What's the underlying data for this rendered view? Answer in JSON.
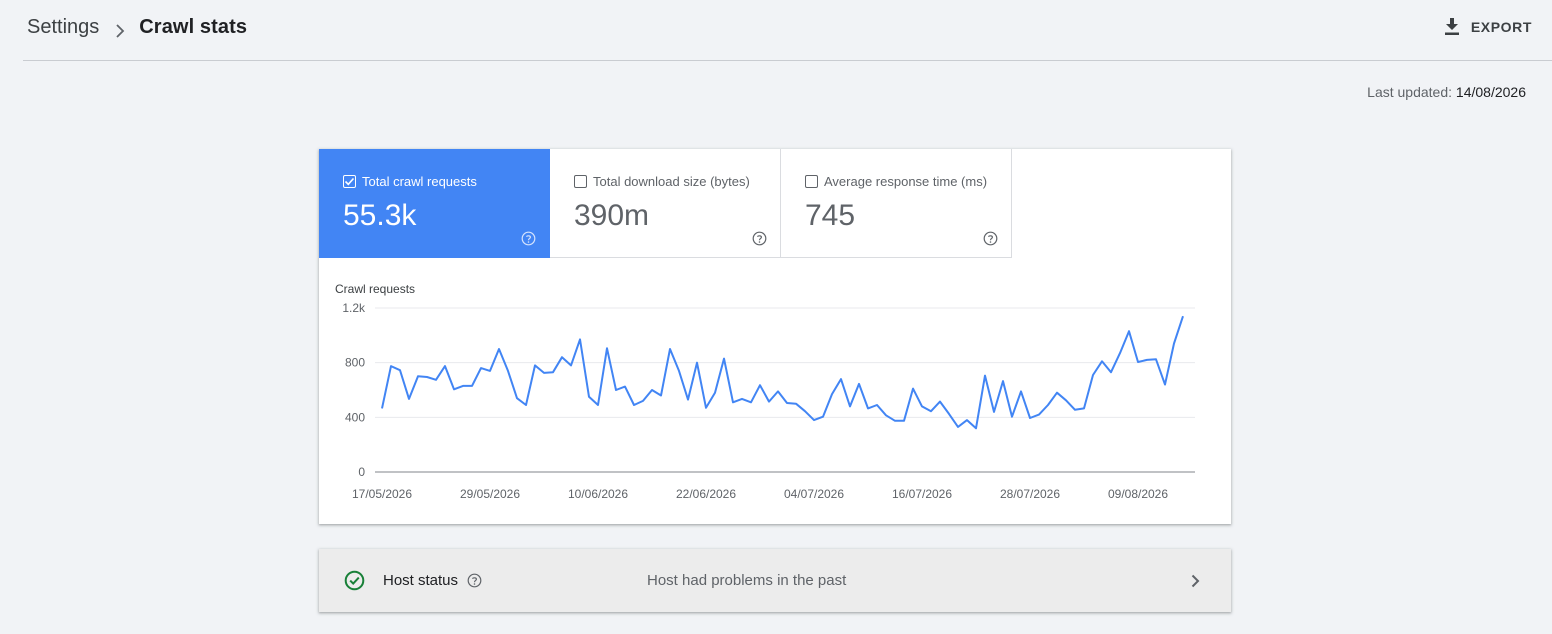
{
  "breadcrumb": {
    "parent": "Settings",
    "current": "Crawl stats"
  },
  "toolbar": {
    "export_label": "EXPORT"
  },
  "last_updated": {
    "label": "Last updated:",
    "date": "14/08/2026"
  },
  "metrics": [
    {
      "label": "Total crawl requests",
      "value": "55.3k",
      "checked": true
    },
    {
      "label": "Total download size (bytes)",
      "value": "390m",
      "checked": false
    },
    {
      "label": "Average response time (ms)",
      "value": "745",
      "checked": false
    }
  ],
  "host_status": {
    "title": "Host status",
    "status": "Host had problems in the past"
  },
  "colors": {
    "accent": "#4285f4",
    "line": "#4285f4",
    "ok_green": "#188038"
  },
  "chart_data": {
    "type": "line",
    "ylabel": "Crawl requests",
    "ylim": [
      0,
      1200
    ],
    "yticks": [
      {
        "value": 0,
        "label": "0"
      },
      {
        "value": 400,
        "label": "400"
      },
      {
        "value": 800,
        "label": "800"
      },
      {
        "value": 1200,
        "label": "1.2k"
      }
    ],
    "x_start": "17/05/2026",
    "x_end": "14/08/2026",
    "xticks": [
      "17/05/2026",
      "29/05/2026",
      "10/06/2026",
      "22/06/2026",
      "04/07/2026",
      "16/07/2026",
      "28/07/2026",
      "09/08/2026"
    ],
    "grid": true,
    "series": [
      {
        "values": [
          465,
          775,
          745,
          535,
          700,
          695,
          675,
          775,
          605,
          630,
          630,
          760,
          740,
          900,
          740,
          540,
          490,
          780,
          725,
          730,
          840,
          780,
          970,
          550,
          490,
          905,
          600,
          625,
          490,
          520,
          600,
          560,
          900,
          740,
          530,
          800,
          470,
          580,
          830,
          510,
          535,
          510,
          635,
          515,
          590,
          505,
          500,
          445,
          380,
          405,
          570,
          680,
          480,
          645,
          465,
          490,
          415,
          375,
          375,
          610,
          480,
          445,
          515,
          425,
          330,
          380,
          320,
          705,
          440,
          665,
          405,
          590,
          395,
          420,
          490,
          580,
          525,
          455,
          465,
          710,
          810,
          730,
          870,
          1030,
          805,
          820,
          825,
          640,
          940,
          1140
        ]
      }
    ]
  }
}
